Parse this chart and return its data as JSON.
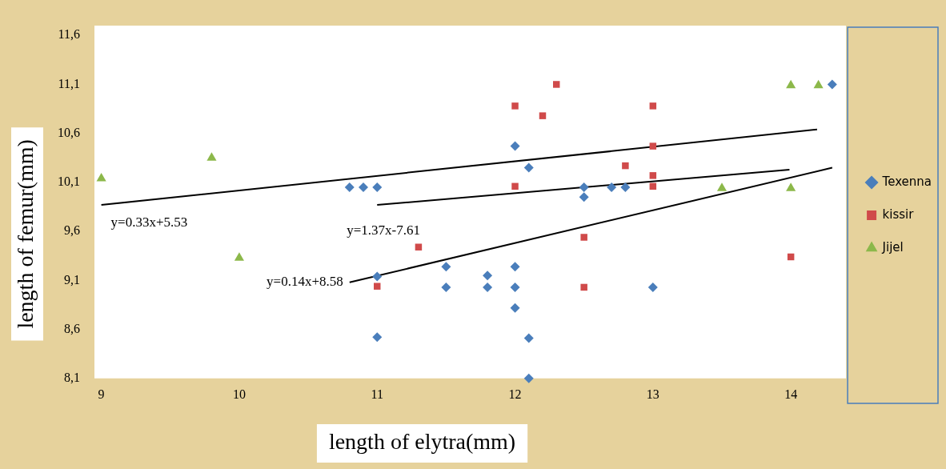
{
  "chart_data": {
    "type": "scatter",
    "xlabel": "length of elytra(mm)",
    "ylabel": "length of femur(mm)",
    "xlim": [
      8.95,
      14.4
    ],
    "xticks": [
      9,
      10,
      11,
      12,
      13,
      14
    ],
    "ylim": [
      8.1,
      11.7
    ],
    "yticks": [
      {
        "value": 8.1,
        "label": "8,1"
      },
      {
        "value": 8.6,
        "label": "8,6"
      },
      {
        "value": 9.1,
        "label": "9,1"
      },
      {
        "value": 9.6,
        "label": "9,6"
      },
      {
        "value": 10.1,
        "label": "10,1"
      },
      {
        "value": 10.6,
        "label": "10,6"
      },
      {
        "value": 11.1,
        "label": "11,1"
      },
      {
        "value": 11.6,
        "label": "11,6"
      }
    ],
    "grid": false,
    "legend": "right",
    "series": [
      {
        "name": "Texenna",
        "color": "#4a7ebb",
        "marker": "diamond",
        "x": [
          10.8,
          10.9,
          11.0,
          11.0,
          11.0,
          12.0,
          12.1,
          12.5,
          12.5,
          12.7,
          12.8,
          11.5,
          11.5,
          11.8,
          11.8,
          12.0,
          12.0,
          12.0,
          12.1,
          12.1,
          13.0,
          14.3
        ],
        "values": [
          10.05,
          10.05,
          10.05,
          9.14,
          8.52,
          10.47,
          10.25,
          10.05,
          9.95,
          10.05,
          10.05,
          9.24,
          9.03,
          9.15,
          9.03,
          9.24,
          9.03,
          8.82,
          8.51,
          8.1,
          9.03,
          11.1
        ]
      },
      {
        "name": "kissir",
        "color": "#d04a4a",
        "marker": "square",
        "x": [
          12.3,
          12.0,
          12.2,
          13.0,
          13.0,
          12.8,
          13.0,
          13.0,
          12.0,
          12.5,
          12.5,
          14.0,
          11.3,
          11.0
        ],
        "values": [
          11.1,
          10.88,
          10.78,
          10.88,
          10.47,
          10.27,
          10.17,
          10.06,
          10.06,
          9.54,
          9.03,
          9.34,
          9.44,
          9.04
        ]
      },
      {
        "name": "Jijel",
        "color": "#8cb84a",
        "marker": "triangle",
        "x": [
          9.0,
          9.8,
          10.0,
          13.5,
          14.0,
          14.0,
          14.2
        ],
        "values": [
          10.14,
          10.35,
          9.33,
          10.04,
          10.04,
          11.09,
          11.09
        ]
      },
      {
        "type": "line",
        "color": "#000000",
        "marker": "none",
        "x": [
          9.0,
          14.19
        ],
        "values": [
          9.87,
          10.64
        ]
      },
      {
        "type": "line",
        "color": "#000000",
        "marker": "none",
        "x": [
          11.0,
          13.99
        ],
        "values": [
          9.87,
          10.23
        ]
      },
      {
        "type": "line",
        "color": "#000000",
        "marker": "none",
        "x": [
          10.8,
          14.3
        ],
        "values": [
          9.08,
          10.25
        ]
      }
    ],
    "annotations": [
      "y=0.33x+5.53",
      "y=1.37x-7.61",
      "y=0.14x+8.58"
    ]
  }
}
